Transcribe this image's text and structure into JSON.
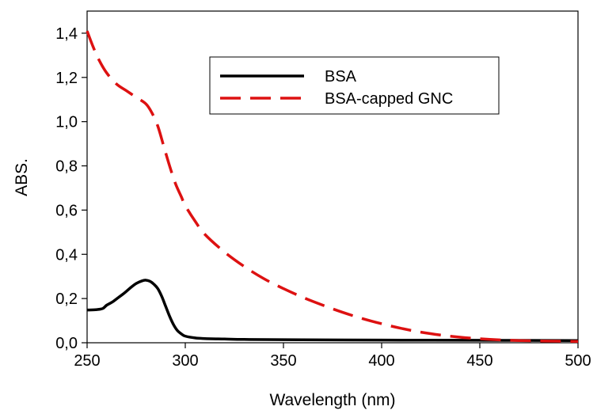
{
  "chart_data": {
    "type": "line",
    "title": "",
    "xlabel": "Wavelength (nm)",
    "ylabel": "ABS.",
    "xlim": [
      250,
      500
    ],
    "ylim": [
      0.0,
      1.5
    ],
    "x_ticks": [
      250,
      300,
      350,
      400,
      450,
      500
    ],
    "x_tick_labels": [
      "250",
      "300",
      "350",
      "400",
      "450",
      "500"
    ],
    "y_ticks": [
      0.0,
      0.2,
      0.4,
      0.6,
      0.8,
      1.0,
      1.2,
      1.4
    ],
    "y_tick_labels": [
      "0,0",
      "0,2",
      "0,4",
      "0,6",
      "0,8",
      "1,0",
      "1,2",
      "1,4"
    ],
    "grid": false,
    "legend_position": "top-center",
    "series": [
      {
        "name": "BSA",
        "color": "#000000",
        "style": "solid",
        "x": [
          250,
          255,
          258,
          260,
          263,
          266,
          269,
          272,
          275,
          278,
          280,
          282,
          284,
          286,
          288,
          290,
          292,
          294,
          296,
          298,
          300,
          305,
          310,
          320,
          330,
          350,
          400,
          450,
          500
        ],
        "y": [
          0.148,
          0.15,
          0.155,
          0.17,
          0.185,
          0.205,
          0.225,
          0.248,
          0.268,
          0.28,
          0.283,
          0.278,
          0.265,
          0.245,
          0.21,
          0.165,
          0.12,
          0.082,
          0.055,
          0.04,
          0.03,
          0.022,
          0.019,
          0.017,
          0.015,
          0.014,
          0.012,
          0.011,
          0.01
        ]
      },
      {
        "name": "BSA-capped GNC",
        "color": "#dd1111",
        "style": "dashed",
        "x": [
          250,
          253,
          256,
          260,
          265,
          270,
          275,
          280,
          283,
          286,
          289,
          292,
          295,
          298,
          300,
          305,
          310,
          320,
          330,
          340,
          350,
          360,
          370,
          380,
          390,
          400,
          410,
          420,
          430,
          440,
          450,
          460,
          470,
          480,
          490,
          500
        ],
        "y": [
          1.41,
          1.34,
          1.28,
          1.22,
          1.17,
          1.14,
          1.11,
          1.08,
          1.04,
          0.98,
          0.89,
          0.8,
          0.72,
          0.66,
          0.62,
          0.55,
          0.49,
          0.41,
          0.345,
          0.29,
          0.245,
          0.205,
          0.17,
          0.138,
          0.11,
          0.086,
          0.065,
          0.048,
          0.035,
          0.025,
          0.018,
          0.013,
          0.01,
          0.008,
          0.007,
          0.006
        ]
      }
    ]
  }
}
